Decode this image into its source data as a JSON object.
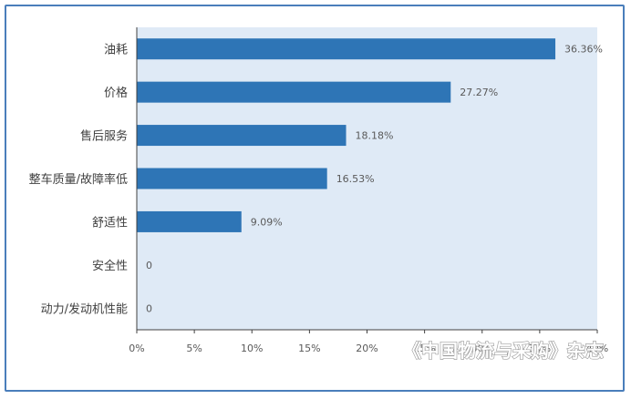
{
  "chart_data": {
    "type": "bar",
    "orientation": "horizontal",
    "categories": [
      "油耗",
      "价格",
      "售后服务",
      "整车质量/故障率低",
      "舒适性",
      "安全性",
      "动力/发动机性能"
    ],
    "values": [
      36.36,
      27.27,
      18.18,
      16.53,
      9.09,
      0,
      0
    ],
    "data_labels": [
      "36.36%",
      "27.27%",
      "18.18%",
      "16.53%",
      "9.09%",
      "0",
      "0"
    ],
    "x_ticks": [
      "0%",
      "5%",
      "10%",
      "15%",
      "20%",
      "25%",
      "30%",
      "35%",
      "40%"
    ],
    "xlim": [
      0,
      40
    ],
    "grid": false,
    "colors": {
      "bar": "#2e75b6",
      "plot_bg": "#dfeaf6",
      "frame": "#4a7ebb",
      "axis": "#404040"
    }
  },
  "watermark": "《中国物流与采购》杂志"
}
